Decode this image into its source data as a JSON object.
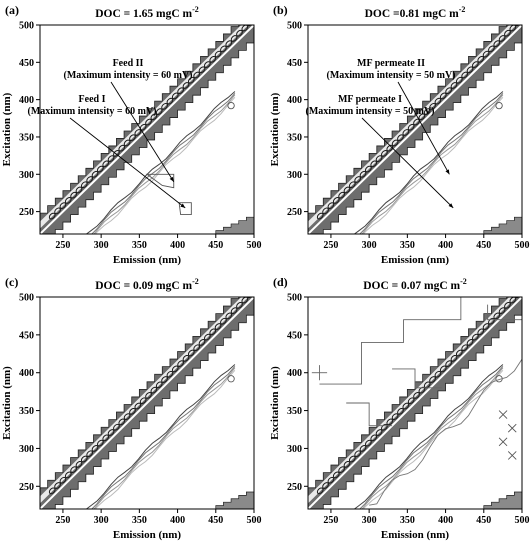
{
  "chart_data": [
    {
      "type": "contour",
      "panel": "(a)",
      "title": "DOC = 1.65 mgC m",
      "title_sup": "-2",
      "xlabel": "Emission (nm)",
      "ylabel": "Excitation (nm)",
      "xlim": [
        220,
        500
      ],
      "ylim": [
        220,
        500
      ],
      "xticks": [
        250,
        300,
        350,
        400,
        450,
        500
      ],
      "yticks": [
        250,
        300,
        350,
        400,
        450,
        500
      ],
      "annotations": [
        {
          "name": "Feed II",
          "text": "Maximum intensity = 60 mV",
          "target": [
            395,
            290
          ]
        },
        {
          "name": "Feed I",
          "text": "Maximum intensity = 60 mV",
          "target": [
            410,
            255
          ]
        }
      ],
      "extra_blobs": 1
    },
    {
      "type": "contour",
      "panel": "(b)",
      "title": "DOC =0.81 mgC m",
      "title_sup": "-2",
      "xlabel": "Emission (nm)",
      "ylabel": "Excitation (nm)",
      "xlim": [
        220,
        500
      ],
      "ylim": [
        220,
        500
      ],
      "xticks": [
        250,
        300,
        350,
        400,
        450,
        500
      ],
      "yticks": [
        250,
        300,
        350,
        400,
        450,
        500
      ],
      "annotations": [
        {
          "name": "MF permeate II",
          "text": "Maximum intensity = 50 mV",
          "target": [
            405,
            300
          ]
        },
        {
          "name": "MF permeate I",
          "text": "Maximum intensity = 50 mV",
          "target": [
            410,
            255
          ]
        }
      ],
      "extra_blobs": 0
    },
    {
      "type": "contour",
      "panel": "(c)",
      "title": "DOC = 0.09 mgC m",
      "title_sup": "-2",
      "xlabel": "Emission (nm)",
      "ylabel": "Excitation (nm)",
      "xlim": [
        220,
        500
      ],
      "ylim": [
        220,
        500
      ],
      "xticks": [
        250,
        300,
        350,
        400,
        450,
        500
      ],
      "yticks": [
        250,
        300,
        350,
        400,
        450,
        500
      ],
      "annotations": [],
      "extra_blobs": 0
    },
    {
      "type": "contour",
      "panel": "(d)",
      "title": "DOC = 0.07 mgC m",
      "title_sup": "-2",
      "xlabel": "Emission (nm)",
      "ylabel": "Excitation (nm)",
      "xlim": [
        220,
        500
      ],
      "ylim": [
        220,
        500
      ],
      "xticks": [
        250,
        300,
        350,
        400,
        450,
        500
      ],
      "yticks": [
        250,
        300,
        350,
        400,
        450,
        500
      ],
      "annotations": [],
      "extra_blobs": 2
    }
  ]
}
